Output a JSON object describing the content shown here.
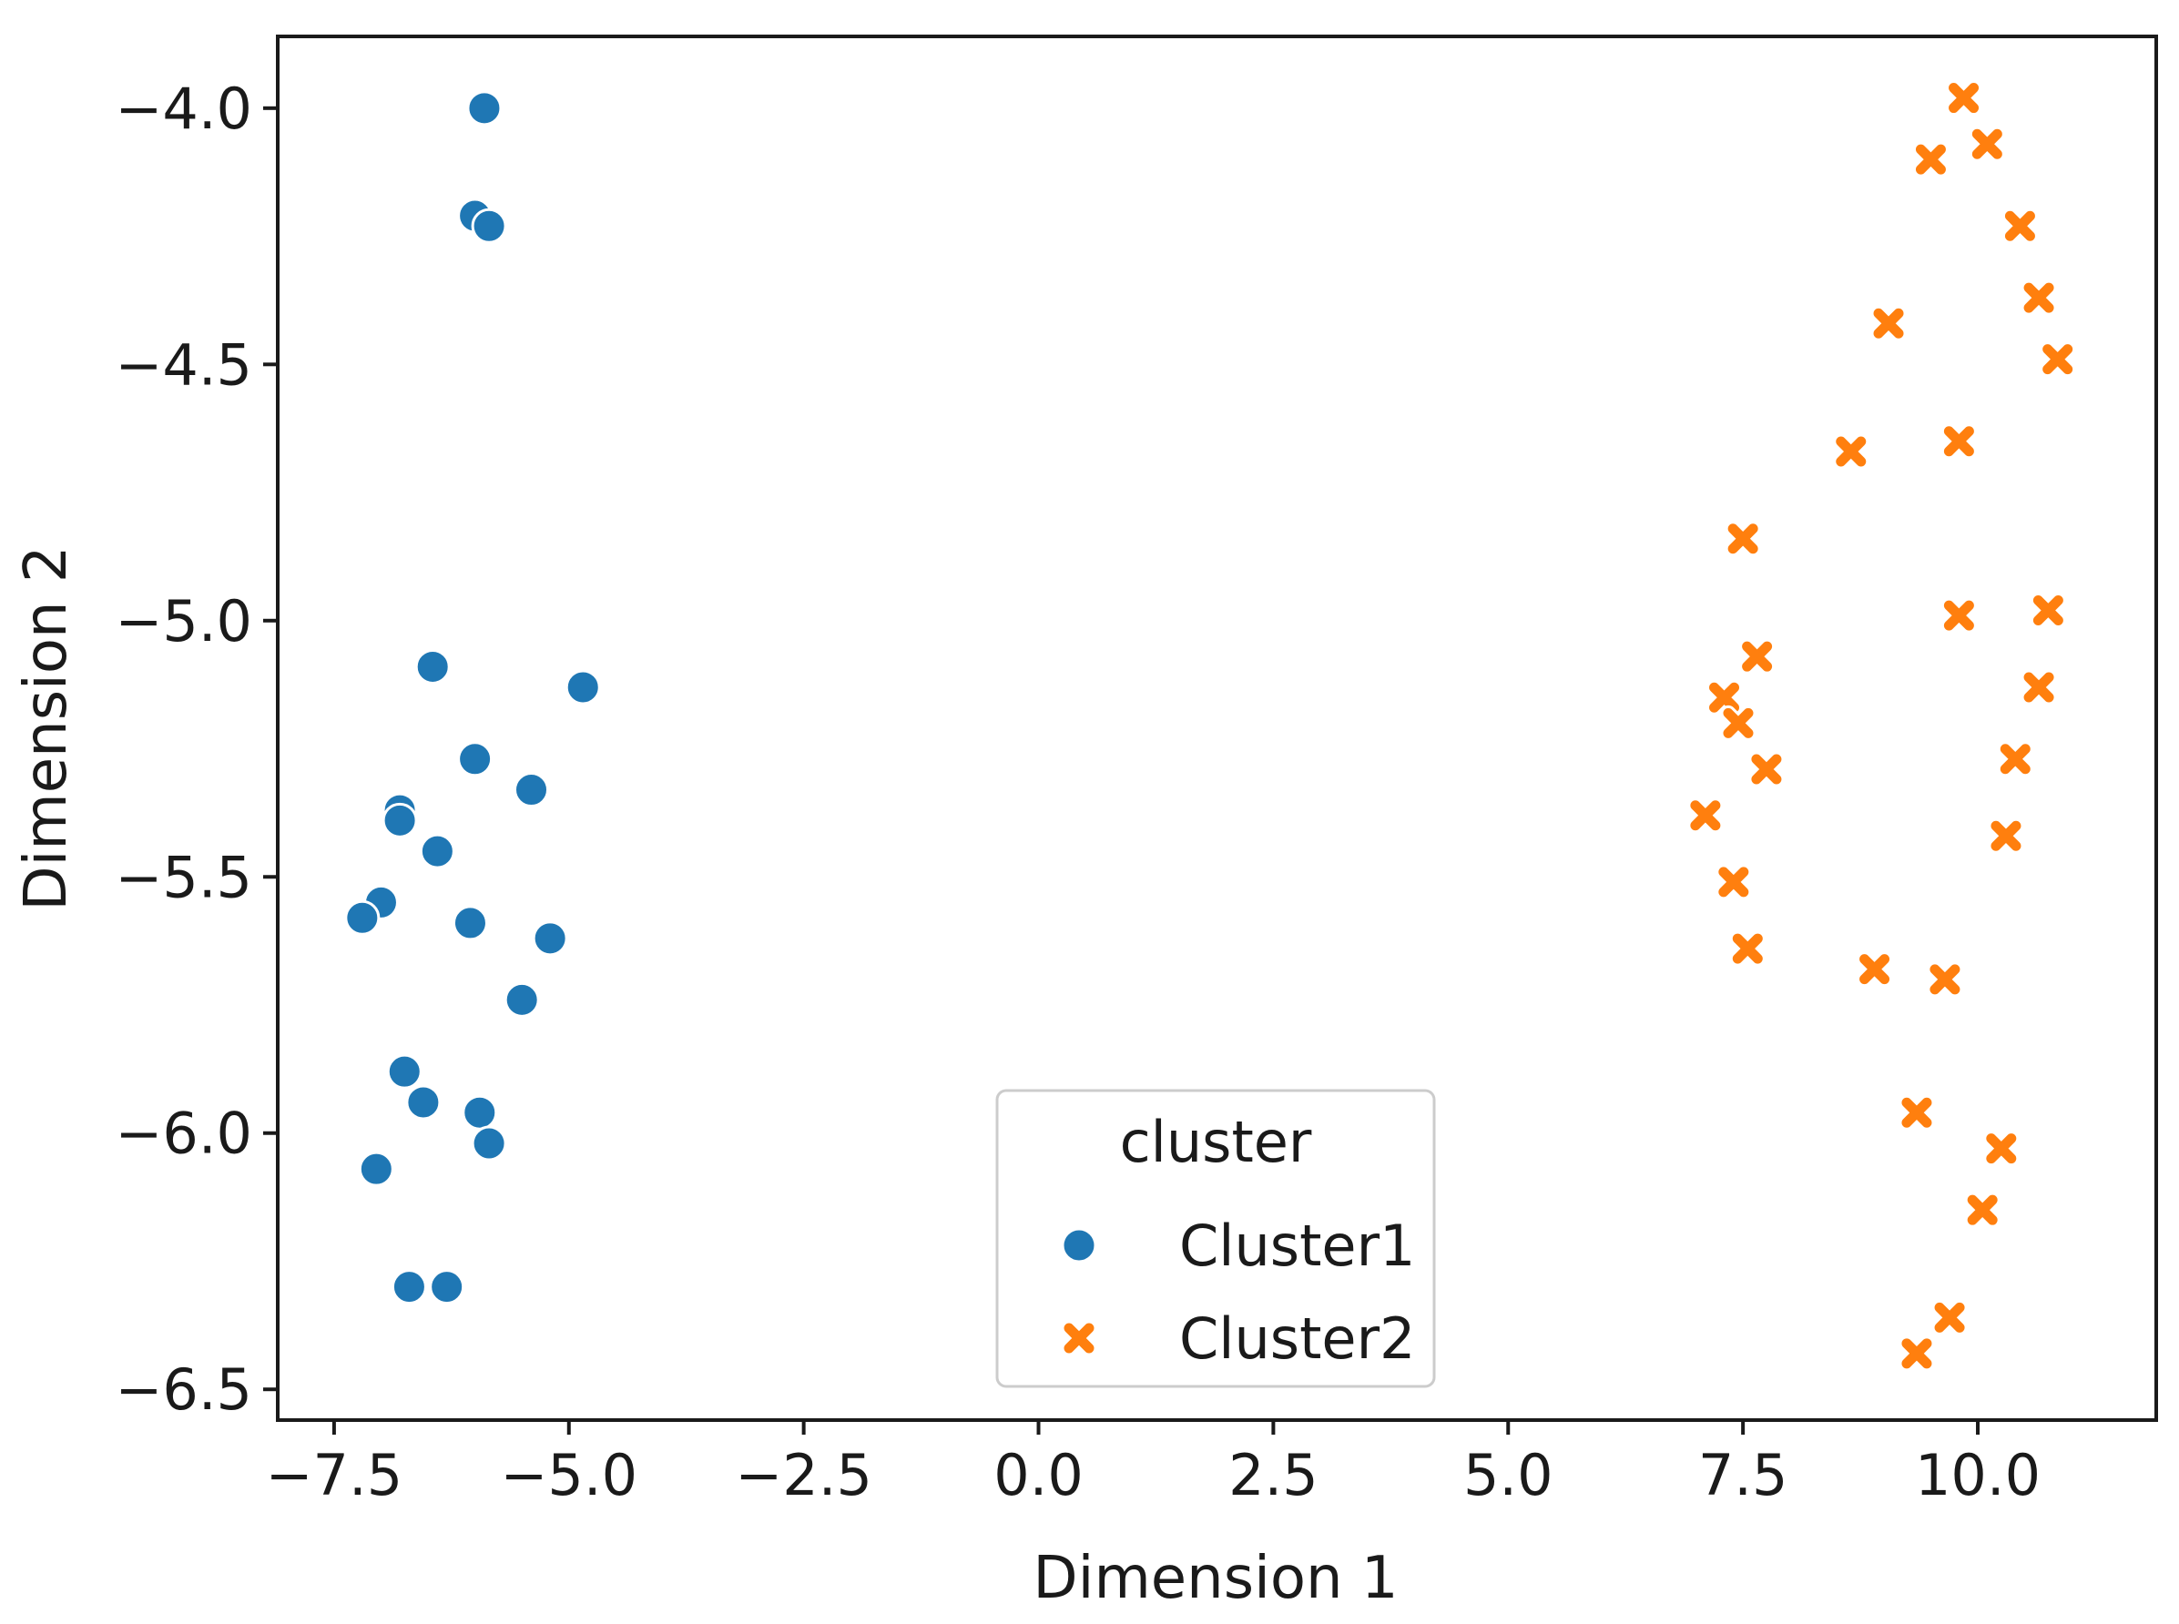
{
  "chart_data": {
    "type": "scatter",
    "title": "",
    "xlabel": "Dimension 1",
    "ylabel": "Dimension 2",
    "xlim": [
      -8.1,
      11.9
    ],
    "ylim": [
      -6.56,
      -3.86
    ],
    "xticks": [
      -7.5,
      -5.0,
      -2.5,
      0.0,
      2.5,
      5.0,
      7.5,
      10.0
    ],
    "xtick_labels": [
      "−7.5",
      "−5.0",
      "−2.5",
      "0.0",
      "2.5",
      "5.0",
      "7.5",
      "10.0"
    ],
    "yticks": [
      -4.0,
      -4.5,
      -5.0,
      -5.5,
      -6.0,
      -6.5
    ],
    "ytick_labels": [
      "−4.0",
      "−4.5",
      "−5.0",
      "−5.5",
      "−6.0",
      "−6.5"
    ],
    "grid": false,
    "legend": {
      "title": "cluster",
      "position": "bottom-center"
    },
    "series": [
      {
        "name": "Cluster1",
        "marker": "circle",
        "color": "#1f77b4",
        "x": [
          -5.9,
          -6.0,
          -5.85,
          -6.45,
          -4.85,
          -6.0,
          -5.4,
          -6.8,
          -6.8,
          -6.4,
          -7.0,
          -7.2,
          -6.05,
          -5.2,
          -5.5,
          -6.75,
          -6.55,
          -5.95,
          -5.85,
          -7.05,
          -6.7,
          -6.3
        ],
        "y": [
          -4.0,
          -4.21,
          -4.23,
          -5.09,
          -5.13,
          -5.27,
          -5.33,
          -5.37,
          -5.39,
          -5.45,
          -5.55,
          -5.58,
          -5.59,
          -5.62,
          -5.74,
          -5.88,
          -5.94,
          -5.96,
          -6.02,
          -6.07,
          -6.3,
          -6.3
        ]
      },
      {
        "name": "Cluster2",
        "marker": "x",
        "color": "#ff7f0e",
        "x": [
          9.85,
          10.1,
          9.5,
          10.45,
          10.65,
          9.05,
          10.85,
          8.65,
          9.8,
          7.5,
          9.8,
          10.75,
          7.65,
          10.65,
          7.3,
          7.45,
          7.75,
          10.4,
          7.1,
          10.3,
          7.4,
          7.55,
          8.9,
          9.65,
          9.35,
          10.25,
          10.05,
          9.7,
          9.35
        ],
        "y": [
          -3.98,
          -4.07,
          -4.1,
          -4.23,
          -4.37,
          -4.42,
          -4.49,
          -4.67,
          -4.65,
          -4.84,
          -4.99,
          -4.98,
          -5.07,
          -5.13,
          -5.15,
          -5.2,
          -5.29,
          -5.27,
          -5.38,
          -5.42,
          -5.51,
          -5.64,
          -5.68,
          -5.7,
          -5.96,
          -6.03,
          -6.15,
          -6.36,
          -6.43
        ]
      }
    ]
  }
}
